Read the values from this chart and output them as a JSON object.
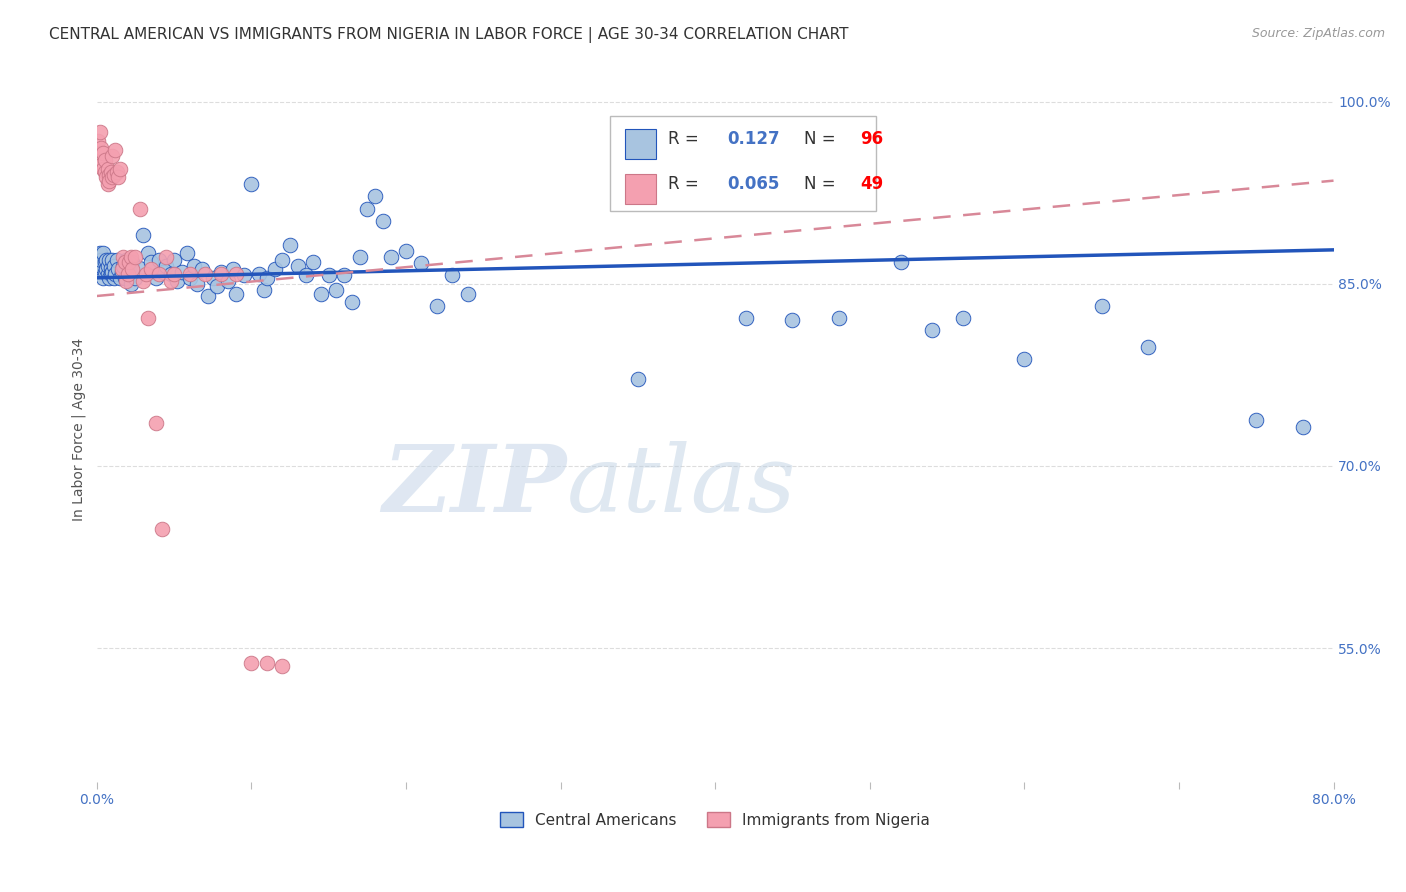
{
  "title": "CENTRAL AMERICAN VS IMMIGRANTS FROM NIGERIA IN LABOR FORCE | AGE 30-34 CORRELATION CHART",
  "source": "Source: ZipAtlas.com",
  "ylabel": "In Labor Force | Age 30-34",
  "legend_label1": "Central Americans",
  "legend_label2": "Immigrants from Nigeria",
  "R1": 0.127,
  "N1": 96,
  "R2": 0.065,
  "N2": 49,
  "xlim": [
    0.0,
    0.8
  ],
  "ylim": [
    0.44,
    1.02
  ],
  "yticks": [
    0.55,
    0.7,
    0.85,
    1.0
  ],
  "ytick_labels": [
    "55.0%",
    "70.0%",
    "85.0%",
    "100.0%"
  ],
  "xticks": [
    0.0,
    0.1,
    0.2,
    0.3,
    0.4,
    0.5,
    0.6,
    0.7,
    0.8
  ],
  "xtick_labels": [
    "0.0%",
    "",
    "",
    "",
    "",
    "",
    "",
    "",
    "80.0%"
  ],
  "color_blue": "#a8c4e0",
  "color_pink": "#f4a0b0",
  "line_blue": "#2255bb",
  "line_pink": "#d88898",
  "scatter_blue": [
    [
      0.001,
      0.87
    ],
    [
      0.002,
      0.875
    ],
    [
      0.002,
      0.86
    ],
    [
      0.003,
      0.865
    ],
    [
      0.003,
      0.87
    ],
    [
      0.004,
      0.875
    ],
    [
      0.004,
      0.855
    ],
    [
      0.005,
      0.868
    ],
    [
      0.005,
      0.86
    ],
    [
      0.006,
      0.862
    ],
    [
      0.006,
      0.87
    ],
    [
      0.007,
      0.858
    ],
    [
      0.007,
      0.865
    ],
    [
      0.008,
      0.87
    ],
    [
      0.008,
      0.855
    ],
    [
      0.009,
      0.863
    ],
    [
      0.009,
      0.858
    ],
    [
      0.01,
      0.87
    ],
    [
      0.01,
      0.86
    ],
    [
      0.011,
      0.855
    ],
    [
      0.011,
      0.865
    ],
    [
      0.012,
      0.858
    ],
    [
      0.013,
      0.87
    ],
    [
      0.014,
      0.862
    ],
    [
      0.015,
      0.855
    ],
    [
      0.016,
      0.86
    ],
    [
      0.017,
      0.865
    ],
    [
      0.018,
      0.855
    ],
    [
      0.019,
      0.87
    ],
    [
      0.02,
      0.858
    ],
    [
      0.021,
      0.862
    ],
    [
      0.022,
      0.85
    ],
    [
      0.023,
      0.868
    ],
    [
      0.025,
      0.855
    ],
    [
      0.027,
      0.863
    ],
    [
      0.03,
      0.89
    ],
    [
      0.033,
      0.875
    ],
    [
      0.035,
      0.868
    ],
    [
      0.038,
      0.855
    ],
    [
      0.04,
      0.87
    ],
    [
      0.043,
      0.86
    ],
    [
      0.045,
      0.865
    ],
    [
      0.048,
      0.858
    ],
    [
      0.05,
      0.87
    ],
    [
      0.052,
      0.852
    ],
    [
      0.055,
      0.86
    ],
    [
      0.058,
      0.875
    ],
    [
      0.06,
      0.855
    ],
    [
      0.063,
      0.865
    ],
    [
      0.065,
      0.85
    ],
    [
      0.068,
      0.862
    ],
    [
      0.072,
      0.84
    ],
    [
      0.075,
      0.855
    ],
    [
      0.078,
      0.848
    ],
    [
      0.08,
      0.86
    ],
    [
      0.085,
      0.852
    ],
    [
      0.088,
      0.862
    ],
    [
      0.09,
      0.842
    ],
    [
      0.095,
      0.857
    ],
    [
      0.1,
      0.932
    ],
    [
      0.105,
      0.858
    ],
    [
      0.108,
      0.845
    ],
    [
      0.11,
      0.855
    ],
    [
      0.115,
      0.862
    ],
    [
      0.12,
      0.87
    ],
    [
      0.125,
      0.882
    ],
    [
      0.13,
      0.865
    ],
    [
      0.135,
      0.857
    ],
    [
      0.14,
      0.868
    ],
    [
      0.145,
      0.842
    ],
    [
      0.15,
      0.857
    ],
    [
      0.155,
      0.845
    ],
    [
      0.16,
      0.857
    ],
    [
      0.165,
      0.835
    ],
    [
      0.17,
      0.872
    ],
    [
      0.175,
      0.912
    ],
    [
      0.18,
      0.922
    ],
    [
      0.185,
      0.902
    ],
    [
      0.19,
      0.872
    ],
    [
      0.2,
      0.877
    ],
    [
      0.21,
      0.867
    ],
    [
      0.22,
      0.832
    ],
    [
      0.23,
      0.857
    ],
    [
      0.24,
      0.842
    ],
    [
      0.35,
      0.772
    ],
    [
      0.42,
      0.822
    ],
    [
      0.45,
      0.82
    ],
    [
      0.48,
      0.822
    ],
    [
      0.52,
      0.868
    ],
    [
      0.54,
      0.812
    ],
    [
      0.56,
      0.822
    ],
    [
      0.6,
      0.788
    ],
    [
      0.65,
      0.832
    ],
    [
      0.68,
      0.798
    ],
    [
      0.75,
      0.738
    ],
    [
      0.78,
      0.732
    ]
  ],
  "scatter_pink": [
    [
      0.001,
      0.968
    ],
    [
      0.002,
      0.975
    ],
    [
      0.002,
      0.958
    ],
    [
      0.003,
      0.948
    ],
    [
      0.003,
      0.962
    ],
    [
      0.004,
      0.945
    ],
    [
      0.004,
      0.958
    ],
    [
      0.005,
      0.942
    ],
    [
      0.005,
      0.952
    ],
    [
      0.006,
      0.938
    ],
    [
      0.007,
      0.932
    ],
    [
      0.007,
      0.945
    ],
    [
      0.008,
      0.94
    ],
    [
      0.008,
      0.935
    ],
    [
      0.009,
      0.942
    ],
    [
      0.01,
      0.938
    ],
    [
      0.01,
      0.955
    ],
    [
      0.011,
      0.94
    ],
    [
      0.012,
      0.96
    ],
    [
      0.013,
      0.942
    ],
    [
      0.014,
      0.938
    ],
    [
      0.015,
      0.945
    ],
    [
      0.016,
      0.862
    ],
    [
      0.017,
      0.872
    ],
    [
      0.018,
      0.868
    ],
    [
      0.019,
      0.852
    ],
    [
      0.02,
      0.858
    ],
    [
      0.021,
      0.868
    ],
    [
      0.022,
      0.872
    ],
    [
      0.023,
      0.862
    ],
    [
      0.025,
      0.872
    ],
    [
      0.028,
      0.912
    ],
    [
      0.03,
      0.852
    ],
    [
      0.032,
      0.858
    ],
    [
      0.033,
      0.822
    ],
    [
      0.035,
      0.862
    ],
    [
      0.038,
      0.735
    ],
    [
      0.04,
      0.858
    ],
    [
      0.042,
      0.648
    ],
    [
      0.045,
      0.872
    ],
    [
      0.048,
      0.852
    ],
    [
      0.05,
      0.858
    ],
    [
      0.06,
      0.858
    ],
    [
      0.07,
      0.858
    ],
    [
      0.08,
      0.858
    ],
    [
      0.09,
      0.858
    ],
    [
      0.1,
      0.538
    ],
    [
      0.11,
      0.538
    ],
    [
      0.12,
      0.535
    ]
  ],
  "trend_blue_y0": 0.855,
  "trend_blue_y1": 0.878,
  "trend_pink_y0": 0.84,
  "trend_pink_y1": 0.935,
  "watermark_zip": "ZIP",
  "watermark_atlas": "atlas",
  "background_color": "#ffffff",
  "grid_color": "#dddddd",
  "tick_color": "#4472c4",
  "title_color": "#333333",
  "title_fontsize": 11,
  "axis_label_color": "#555555"
}
